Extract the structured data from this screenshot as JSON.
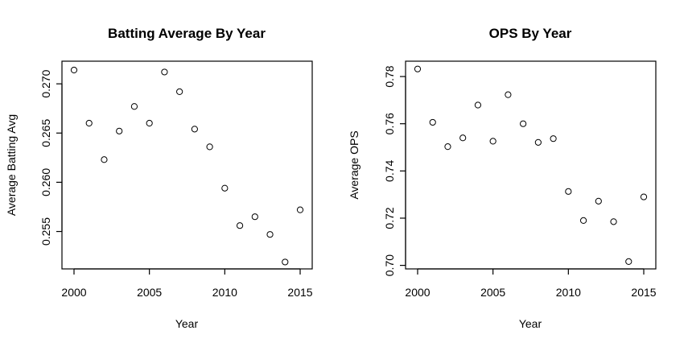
{
  "chart_data": [
    {
      "type": "scatter",
      "title": "Batting Average By Year",
      "xlabel": "Year",
      "ylabel": "Average Batting Avg",
      "xlim": [
        1999.2,
        2015.8
      ],
      "ylim": [
        0.2512,
        0.2723
      ],
      "grid": false,
      "xticks": [
        2000,
        2005,
        2010,
        2015
      ],
      "yticks": [
        0.255,
        0.26,
        0.265,
        0.27
      ],
      "xtick_labels": [
        "2000",
        "2005",
        "2010",
        "2015"
      ],
      "ytick_labels": [
        "0.255",
        "0.260",
        "0.265",
        "0.270"
      ],
      "x": [
        2000,
        2001,
        2002,
        2003,
        2004,
        2005,
        2006,
        2007,
        2008,
        2009,
        2010,
        2011,
        2012,
        2013,
        2014,
        2015
      ],
      "y": [
        0.2714,
        0.266,
        0.2623,
        0.2652,
        0.2677,
        0.266,
        0.2712,
        0.2692,
        0.2654,
        0.2636,
        0.2594,
        0.2556,
        0.2565,
        0.2547,
        0.2519,
        0.2572
      ]
    },
    {
      "type": "scatter",
      "title": "OPS By Year",
      "xlabel": "Year",
      "ylabel": "Average OPS",
      "xlim": [
        1999.2,
        2015.8
      ],
      "ylim": [
        0.6985,
        0.7865
      ],
      "grid": false,
      "xticks": [
        2000,
        2005,
        2010,
        2015
      ],
      "yticks": [
        0.7,
        0.72,
        0.74,
        0.76,
        0.78
      ],
      "xtick_labels": [
        "2000",
        "2005",
        "2010",
        "2015"
      ],
      "ytick_labels": [
        "0.70",
        "0.72",
        "0.74",
        "0.76",
        "0.78"
      ],
      "x": [
        2000,
        2001,
        2002,
        2003,
        2004,
        2005,
        2006,
        2007,
        2008,
        2009,
        2010,
        2011,
        2012,
        2013,
        2014,
        2015
      ],
      "y": [
        0.7832,
        0.7606,
        0.7503,
        0.754,
        0.7679,
        0.7526,
        0.7723,
        0.76,
        0.7521,
        0.7537,
        0.7313,
        0.719,
        0.7272,
        0.7185,
        0.7016,
        0.729
      ]
    }
  ]
}
